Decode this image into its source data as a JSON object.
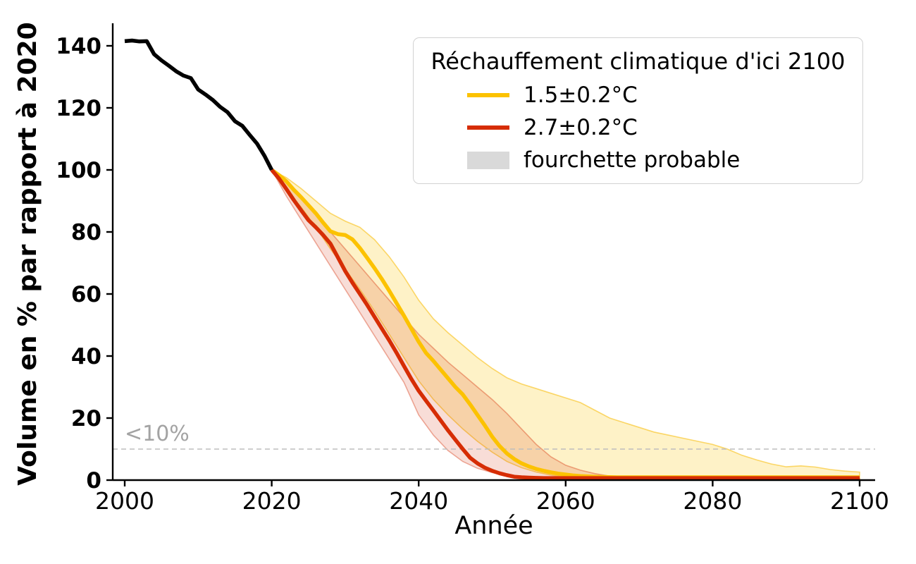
{
  "figure": {
    "y_axis_label": "Volume en % par rapport à 2020",
    "x_axis_label": "Année",
    "threshold_label": "<10%",
    "colors": {
      "scenario_1_5": "#fcc200",
      "scenario_2_7": "#d62d05",
      "historical": "#000000",
      "band_1_5_fill": "rgba(252,194,0,0.22)",
      "band_2_7_fill": "rgba(214,45,5,0.16)",
      "threshold_line": "#bdbdbd",
      "threshold_text": "#a3a3a3",
      "legend_patch": "#d9d9d9"
    },
    "legend": {
      "title": "Réchauffement climatique d'ici 2100",
      "items": [
        {
          "label": "1.5±0.2°C",
          "swatch": "line",
          "color": "#fcc200"
        },
        {
          "label": "2.7±0.2°C",
          "swatch": "line",
          "color": "#d62d05"
        },
        {
          "label": "fourchette probable",
          "swatch": "patch",
          "color": "#d9d9d9"
        }
      ]
    }
  },
  "chart_data": {
    "type": "line",
    "xlabel": "Année",
    "ylabel": "Volume en % par rapport à 2020",
    "xlim": [
      1998.4,
      2102.1
    ],
    "ylim": [
      0,
      147
    ],
    "x_ticks": [
      2000,
      2020,
      2040,
      2060,
      2080,
      2100
    ],
    "y_ticks": [
      0,
      20,
      40,
      60,
      80,
      100,
      120,
      140
    ],
    "grid": false,
    "legend_position": "upper right",
    "threshold": {
      "y": 10,
      "label": "<10%"
    },
    "series": [
      {
        "key": "historical",
        "color": "#000000",
        "x": [
          2000,
          2001,
          2002,
          2003,
          2004,
          2005,
          2006,
          2007,
          2008,
          2009,
          2010,
          2011,
          2012,
          2013,
          2014,
          2015,
          2016,
          2017,
          2018,
          2019,
          2020
        ],
        "y": [
          141.5,
          141.7,
          141.4,
          141.5,
          137.3,
          135.3,
          133.6,
          131.8,
          130.4,
          129.6,
          125.9,
          124.3,
          122.5,
          120.3,
          118.6,
          115.7,
          114.2,
          111.3,
          108.5,
          104.6,
          100
        ]
      },
      {
        "key": "scenario_1_5",
        "label": "1.5±0.2°C",
        "color": "#fcc200",
        "x": [
          2020,
          2021,
          2022,
          2023,
          2024,
          2025,
          2026,
          2027,
          2028,
          2029,
          2030,
          2031,
          2032,
          2033,
          2034,
          2035,
          2036,
          2037,
          2038,
          2039,
          2040,
          2041,
          2042,
          2043,
          2044,
          2045,
          2046,
          2047,
          2048,
          2049,
          2050,
          2051,
          2052,
          2053,
          2054,
          2055,
          2056,
          2057,
          2058,
          2059,
          2060,
          2061,
          2062,
          2063,
          2064,
          2065,
          2066,
          2067,
          2068,
          2069,
          2070,
          2071,
          2072,
          2073,
          2074,
          2075,
          2076,
          2077,
          2078,
          2079,
          2080,
          2081,
          2082,
          2083,
          2084,
          2085,
          2086,
          2087,
          2088,
          2089,
          2090,
          2091,
          2092,
          2093,
          2094,
          2095,
          2096,
          2097,
          2098,
          2099,
          2100
        ],
        "y": [
          100,
          98.3,
          96.3,
          93.6,
          91.2,
          88.6,
          86,
          83,
          80.2,
          79.3,
          79,
          77.6,
          74.8,
          71.6,
          68.3,
          64.8,
          61,
          57,
          53,
          48.8,
          44.6,
          41,
          38.4,
          35.6,
          32.8,
          30,
          27.6,
          24.4,
          21,
          17.6,
          14,
          11,
          8.6,
          6.8,
          5.4,
          4.4,
          3.6,
          3,
          2.5,
          2.1,
          1.8,
          1.5,
          1.3,
          1.2,
          1.1,
          1,
          0.95,
          0.9,
          0.9,
          0.9,
          0.9,
          0.9,
          0.9,
          0.9,
          0.9,
          0.9,
          0.9,
          0.9,
          0.9,
          0.9,
          0.9,
          0.9,
          0.9,
          0.9,
          0.9,
          0.9,
          0.9,
          0.9,
          0.9,
          0.9,
          0.9,
          0.9,
          0.9,
          0.9,
          0.9,
          0.9,
          0.9,
          0.9,
          0.9,
          0.9,
          0.9
        ],
        "band": {
          "fill": "rgba(252,194,0,0.22)",
          "edge": "rgba(247,185,0,0.55)",
          "x": [
            2020,
            2022,
            2024,
            2026,
            2028,
            2030,
            2032,
            2034,
            2036,
            2038,
            2040,
            2042,
            2044,
            2046,
            2048,
            2050,
            2052,
            2054,
            2056,
            2058,
            2060,
            2062,
            2064,
            2066,
            2068,
            2070,
            2072,
            2074,
            2076,
            2078,
            2080,
            2082,
            2084,
            2086,
            2088,
            2090,
            2092,
            2094,
            2096,
            2098,
            2100
          ],
          "upper": [
            100,
            97.5,
            94,
            90,
            86,
            83.5,
            81.5,
            77.5,
            72,
            65.5,
            58,
            52,
            47.5,
            43.5,
            39.5,
            36,
            33,
            31,
            29.5,
            28,
            26.5,
            25,
            22.5,
            20,
            18.5,
            17,
            15.5,
            14.5,
            13.5,
            12.5,
            11.5,
            10,
            8,
            6.5,
            5.2,
            4.3,
            4.6,
            4.2,
            3.4,
            2.9,
            2.6
          ],
          "lower": [
            100,
            93.5,
            88,
            81.5,
            74.5,
            68,
            61.5,
            54.5,
            47,
            39.5,
            32,
            26,
            21,
            16.5,
            12.5,
            9,
            6,
            4,
            2.6,
            1.6,
            1,
            0.7,
            0.5,
            0.4,
            0.35,
            0.3,
            0.3,
            0.3,
            0.3,
            0.3,
            0.3,
            0.25,
            0.25,
            0.25,
            0.25,
            0.25,
            0.25,
            0.25,
            0.25,
            0.25,
            0.25
          ]
        }
      },
      {
        "key": "scenario_2_7",
        "label": "2.7±0.2°C",
        "color": "#d62d05",
        "x": [
          2020,
          2021,
          2022,
          2023,
          2024,
          2025,
          2026,
          2027,
          2028,
          2029,
          2030,
          2031,
          2032,
          2033,
          2034,
          2035,
          2036,
          2037,
          2038,
          2039,
          2040,
          2041,
          2042,
          2043,
          2044,
          2045,
          2046,
          2047,
          2048,
          2049,
          2050,
          2051,
          2052,
          2053,
          2054,
          2055,
          2056,
          2057,
          2058,
          2059,
          2060,
          2061,
          2062,
          2063,
          2064,
          2065,
          2066,
          2067,
          2068,
          2069,
          2070,
          2071,
          2072,
          2073,
          2074,
          2075,
          2076,
          2077,
          2078,
          2079,
          2080,
          2081,
          2082,
          2083,
          2084,
          2085,
          2086,
          2087,
          2088,
          2089,
          2090,
          2091,
          2092,
          2093,
          2094,
          2095,
          2096,
          2097,
          2098,
          2099,
          2100
        ],
        "y": [
          100,
          97.2,
          93.8,
          90.3,
          87,
          83.8,
          81.5,
          79,
          76.2,
          71.8,
          67.4,
          63.6,
          60,
          56.4,
          52.6,
          48.8,
          45,
          41,
          36.8,
          32.6,
          28.8,
          25.6,
          22.4,
          19.2,
          16,
          13,
          10,
          7.2,
          5.4,
          4,
          3,
          2.2,
          1.6,
          1.1,
          0.9,
          0.8,
          0.7,
          0.65,
          0.65,
          0.65,
          0.65,
          0.65,
          0.65,
          0.65,
          0.65,
          0.65,
          0.65,
          0.65,
          0.65,
          0.65,
          0.65,
          0.65,
          0.65,
          0.65,
          0.65,
          0.65,
          0.65,
          0.65,
          0.65,
          0.65,
          0.65,
          0.65,
          0.65,
          0.65,
          0.65,
          0.65,
          0.65,
          0.65,
          0.65,
          0.65,
          0.65,
          0.65,
          0.65,
          0.65,
          0.65,
          0.65,
          0.65,
          0.65,
          0.65,
          0.65,
          0.65
        ],
        "band": {
          "fill": "rgba(214,45,5,0.16)",
          "edge": "rgba(214,45,5,0.38)",
          "x": [
            2020,
            2022,
            2024,
            2026,
            2028,
            2030,
            2032,
            2034,
            2036,
            2038,
            2040,
            2042,
            2044,
            2046,
            2048,
            2050,
            2052,
            2054,
            2056,
            2058,
            2060,
            2062,
            2064,
            2066,
            2068,
            2070,
            2072,
            2074,
            2076,
            2078,
            2080,
            2082,
            2084,
            2086,
            2088,
            2090,
            2092,
            2094,
            2096,
            2098,
            2100
          ],
          "upper": [
            100,
            96,
            91,
            85.5,
            80,
            74.5,
            69,
            63.5,
            58,
            52.5,
            47,
            42.5,
            38,
            34,
            30,
            26,
            21.5,
            16.5,
            11.5,
            7.5,
            4.8,
            3.2,
            2.1,
            1.3,
            0.8,
            0.6,
            0.5,
            0.5,
            0.5,
            0.5,
            0.5,
            0.5,
            0.5,
            0.5,
            0.5,
            0.5,
            0.5,
            0.5,
            0.5,
            0.5,
            0.5
          ],
          "lower": [
            100,
            91.5,
            84,
            76.5,
            69,
            61.5,
            54,
            46.5,
            39,
            31.5,
            21,
            14.5,
            9.5,
            6,
            3.8,
            2.4,
            1.5,
            1,
            0.7,
            0.5,
            0.35,
            0.25,
            0.25,
            0.25,
            0.25,
            0.25,
            0.25,
            0.25,
            0.25,
            0.25,
            0.25,
            0.25,
            0.25,
            0.25,
            0.25,
            0.25,
            0.25,
            0.25,
            0.25,
            0.25,
            0.25
          ]
        }
      }
    ]
  }
}
